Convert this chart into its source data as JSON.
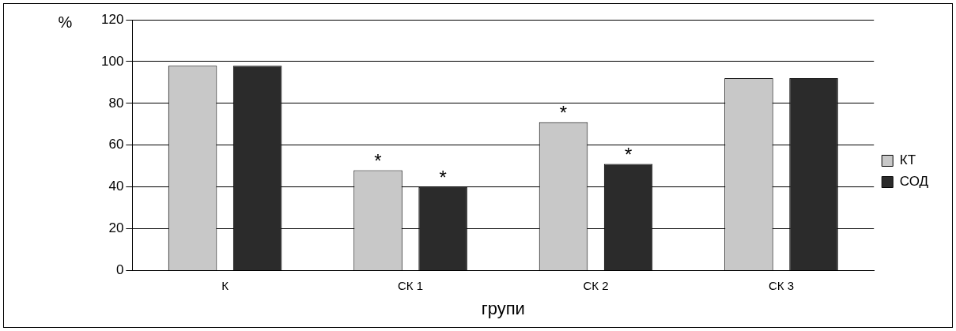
{
  "chart_data": {
    "type": "bar",
    "xlabel": "групи",
    "ylabel": "%",
    "categories": [
      "К",
      "СК 1",
      "СК 2",
      "СК 3"
    ],
    "series": [
      {
        "name": "КТ",
        "color": "#c8c8c8",
        "values": [
          98,
          48,
          71,
          92
        ]
      },
      {
        "name": "СОД",
        "color": "#2b2b2b",
        "values": [
          98,
          40,
          51,
          92
        ]
      }
    ],
    "ylim": [
      0,
      120
    ],
    "yticks": [
      0,
      20,
      40,
      60,
      80,
      100,
      120
    ],
    "grid": "y",
    "legend": "right",
    "annotations": [
      "*",
      "*",
      "*",
      "*"
    ]
  }
}
